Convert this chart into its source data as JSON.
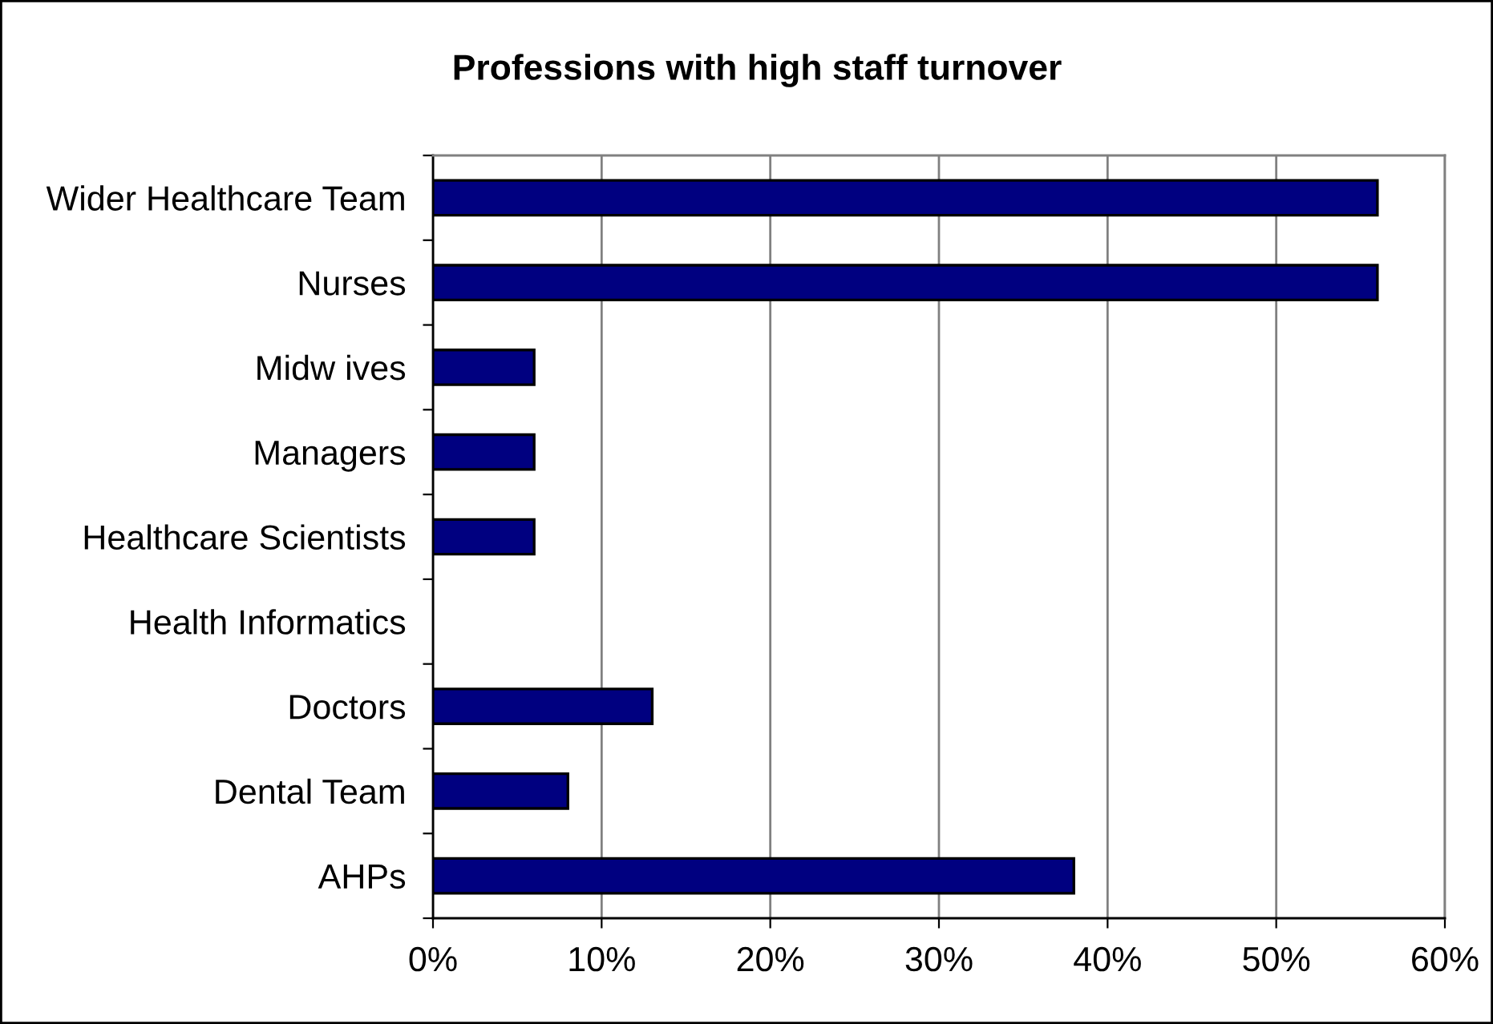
{
  "chart_data": {
    "type": "bar",
    "orientation": "horizontal",
    "title": "Professions with high staff turnover",
    "categories": [
      "Wider Healthcare Team",
      "Nurses",
      "Midw ives",
      "Managers",
      "Healthcare Scientists",
      "Health Informatics",
      "Doctors",
      "Dental Team",
      "AHPs"
    ],
    "values": [
      56,
      56,
      6,
      6,
      6,
      0,
      13,
      8,
      38
    ],
    "color": "#000080",
    "xlim": [
      0,
      60
    ],
    "xticks": [
      {
        "value": 0,
        "label": "0%"
      },
      {
        "value": 10,
        "label": "10%"
      },
      {
        "value": 20,
        "label": "20%"
      },
      {
        "value": 30,
        "label": "30%"
      },
      {
        "value": 40,
        "label": "40%"
      },
      {
        "value": 50,
        "label": "50%"
      },
      {
        "value": 60,
        "label": "60%"
      }
    ],
    "grid": "x"
  }
}
